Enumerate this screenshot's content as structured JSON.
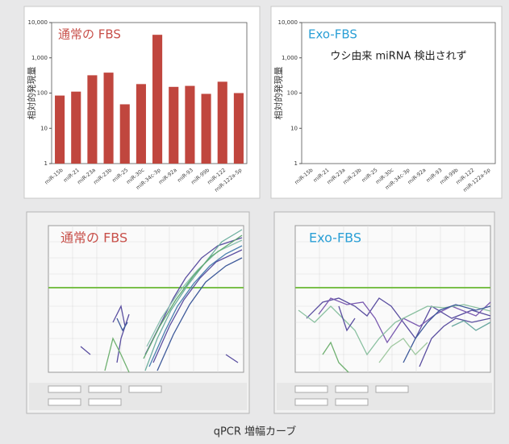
{
  "chart_data": [
    {
      "type": "bar",
      "title": "通常の FBS",
      "title_color": "#c8504a",
      "y_label": "相対的発現量",
      "categories": [
        "miR-15b",
        "miR-21",
        "miR-23a",
        "miR-23b",
        "miR-25",
        "miR-30c",
        "miR-34c-3p",
        "miR-92a",
        "miR-93",
        "miR-99b",
        "miR-122",
        "miR-122a-5p"
      ],
      "values": [
        85,
        110,
        320,
        380,
        48,
        180,
        4500,
        150,
        160,
        95,
        210,
        100
      ],
      "color": "#c0463e",
      "log_scale": true,
      "grid": false,
      "ylim": [
        1,
        10000
      ],
      "yticks": [
        1,
        10,
        100,
        {
          "value": 1000,
          "label": "1,000"
        },
        {
          "value": 10000,
          "label": "10,000"
        }
      ]
    },
    {
      "type": "bar",
      "title": "Exo-FBS",
      "title_color": "#2a9fd6",
      "y_label": "相対的発現量",
      "annotation": "ウシ由来 miRNA 検出されず",
      "categories": [
        "miR-15b",
        "miR-21",
        "miR-23a",
        "miR-23b",
        "miR-25",
        "miR-30c",
        "miR-34c-3p",
        "miR-92a",
        "miR-93",
        "miR-99b",
        "miR-122",
        "miR-122a-5p"
      ],
      "color": "#c0463e",
      "log_scale": true,
      "grid": false,
      "ylim": [
        1,
        10000
      ],
      "yticks": [
        1,
        10,
        100,
        {
          "value": 1000,
          "label": "1,000"
        },
        {
          "value": 10000,
          "label": "10,000"
        }
      ]
    }
  ],
  "qpcr_panels": [
    {
      "label": "通常の FBS"
    },
    {
      "label": "Exo-FBS"
    }
  ],
  "caption": "qPCR 増幅カーブ"
}
